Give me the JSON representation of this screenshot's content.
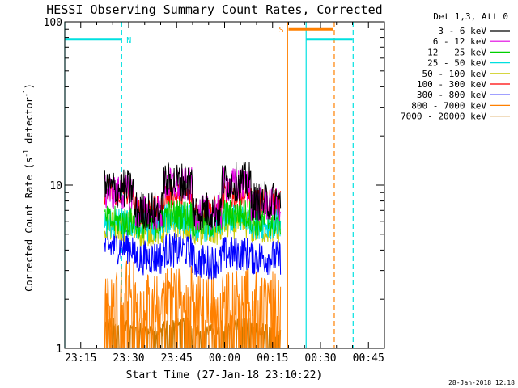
{
  "chart_data": {
    "type": "line",
    "title": "HESSI Observing Summary Count Rates, Corrected",
    "xlabel": "Start Time (27-Jan-18 23:10:22)",
    "ylabel_main": "Corrected Count Rate (s",
    "ylabel_sup1": "-1",
    "ylabel_mid": " detector",
    "ylabel_sup2": "-1",
    "ylabel_end": ")",
    "yscale": "log",
    "ylim": [
      1,
      100
    ],
    "xlim_minutes": [
      0,
      100
    ],
    "x_tick_minutes": [
      5,
      20,
      35,
      50,
      65,
      80,
      95
    ],
    "x_tick_labels": [
      "23:15",
      "23:30",
      "23:45",
      "00:00",
      "00:15",
      "00:30",
      "00:45"
    ],
    "y_ticks": [
      1,
      10,
      100
    ],
    "y_tick_labels": [
      "1",
      "10",
      "100"
    ],
    "legend_title": "Det 1,3, Att 0",
    "timestamp": "28-Jan-2018 12:18",
    "series": [
      {
        "name": "3 - 6 keV",
        "color": "#000000",
        "start": 12.5,
        "end": 67.5,
        "level": [
          9.5,
          7.0,
          10.5,
          7.0,
          10.5,
          8.0
        ],
        "noise": 0.28
      },
      {
        "name": "6 - 12 keV",
        "color": "#e000e0",
        "start": 12.5,
        "end": 67.5,
        "level": [
          9.0,
          6.8,
          10.0,
          6.8,
          10.0,
          7.6
        ],
        "noise": 0.25
      },
      {
        "name": "12 - 25 keV",
        "color": "#00d000",
        "start": 12.5,
        "end": 67.5,
        "level": [
          6.0,
          5.8,
          6.6,
          5.8,
          6.6,
          6.0
        ],
        "noise": 0.22
      },
      {
        "name": "25 - 50 keV",
        "color": "#00e0e0",
        "start": 12.5,
        "end": 67.5,
        "level": [
          5.8,
          5.6,
          6.2,
          5.6,
          6.2,
          5.8
        ],
        "noise": 0.22
      },
      {
        "name": "50 - 100 keV",
        "color": "#c8c800",
        "start": 12.5,
        "end": 67.5,
        "level": [
          5.6,
          5.2,
          5.8,
          5.2,
          5.8,
          5.4
        ],
        "noise": 0.22
      },
      {
        "name": "100 - 300 keV",
        "color": "#ff0000",
        "start": 12.5,
        "end": 67.5,
        "level": [
          9.0,
          7.0,
          8.6,
          7.0,
          8.6,
          7.8
        ],
        "noise": 0.2
      },
      {
        "name": "300 - 800 keV",
        "color": "#0000ff",
        "start": 12.5,
        "end": 67.5,
        "level": [
          4.2,
          3.6,
          4.0,
          3.4,
          3.8,
          3.6
        ],
        "noise": 0.25
      },
      {
        "name": "800 - 7000 keV",
        "color": "#ff8000",
        "start": 12.5,
        "end": 67.5,
        "level": [
          2.5,
          2.0,
          2.3,
          2.0,
          2.2,
          2.1
        ],
        "noise": 0.35
      },
      {
        "name": "7000 - 20000 keV",
        "color": "#c87800",
        "start": 12.5,
        "end": 67.5,
        "level": [
          1.4,
          1.3,
          1.4,
          1.3,
          1.4,
          1.3
        ],
        "noise": 0.1
      }
    ],
    "flag_bars": [
      {
        "label": "N",
        "color": "#00e0e0",
        "segments": [
          [
            0,
            17.8
          ],
          [
            75.5,
            90
          ]
        ],
        "value": 78
      },
      {
        "label": "S",
        "color": "#ff8000",
        "segments": [
          [
            70,
            84
          ]
        ],
        "value": 90
      }
    ],
    "vertical_lines": [
      {
        "x": 0,
        "color": "#00e0e0",
        "dash": false
      },
      {
        "x": 17.8,
        "color": "#00e0e0",
        "dash": true
      },
      {
        "x": 69.7,
        "color": "#ff8000",
        "dash": false
      },
      {
        "x": 75.5,
        "color": "#00e0e0",
        "dash": false
      },
      {
        "x": 84.3,
        "color": "#ff8000",
        "dash": true
      },
      {
        "x": 90.2,
        "color": "#00e0e0",
        "dash": true
      }
    ]
  }
}
